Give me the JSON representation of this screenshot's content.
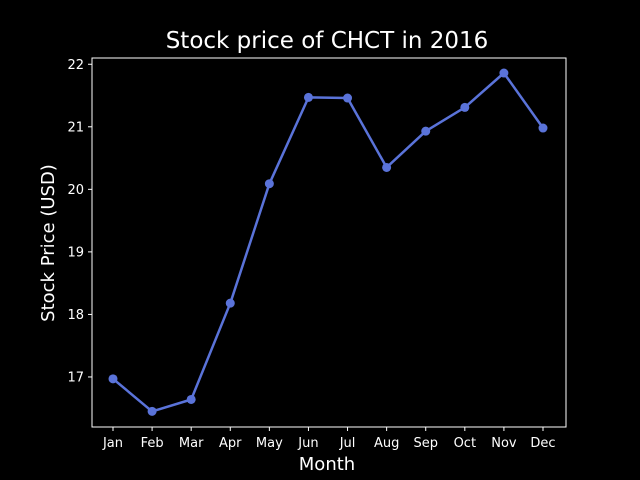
{
  "chart_data": {
    "type": "line",
    "title": "Stock price of CHCT in 2016",
    "xlabel": "Month",
    "ylabel": "Stock Price (USD)",
    "categories": [
      "Jan",
      "Feb",
      "Mar",
      "Apr",
      "May",
      "Jun",
      "Jul",
      "Aug",
      "Sep",
      "Oct",
      "Nov",
      "Dec"
    ],
    "series": [
      {
        "values": [
          16.97,
          16.45,
          16.64,
          18.18,
          20.09,
          21.47,
          21.46,
          20.35,
          20.93,
          21.31,
          21.86,
          20.98
        ],
        "color": "#5a73d9"
      }
    ],
    "ylim": [
      16.2,
      22.1
    ],
    "yticks": [
      17,
      18,
      19,
      20,
      21,
      22
    ],
    "grid": false,
    "legend": "none",
    "colors": {
      "background": "#000000",
      "axes": "#ffffff",
      "text": "#ffffff"
    }
  }
}
